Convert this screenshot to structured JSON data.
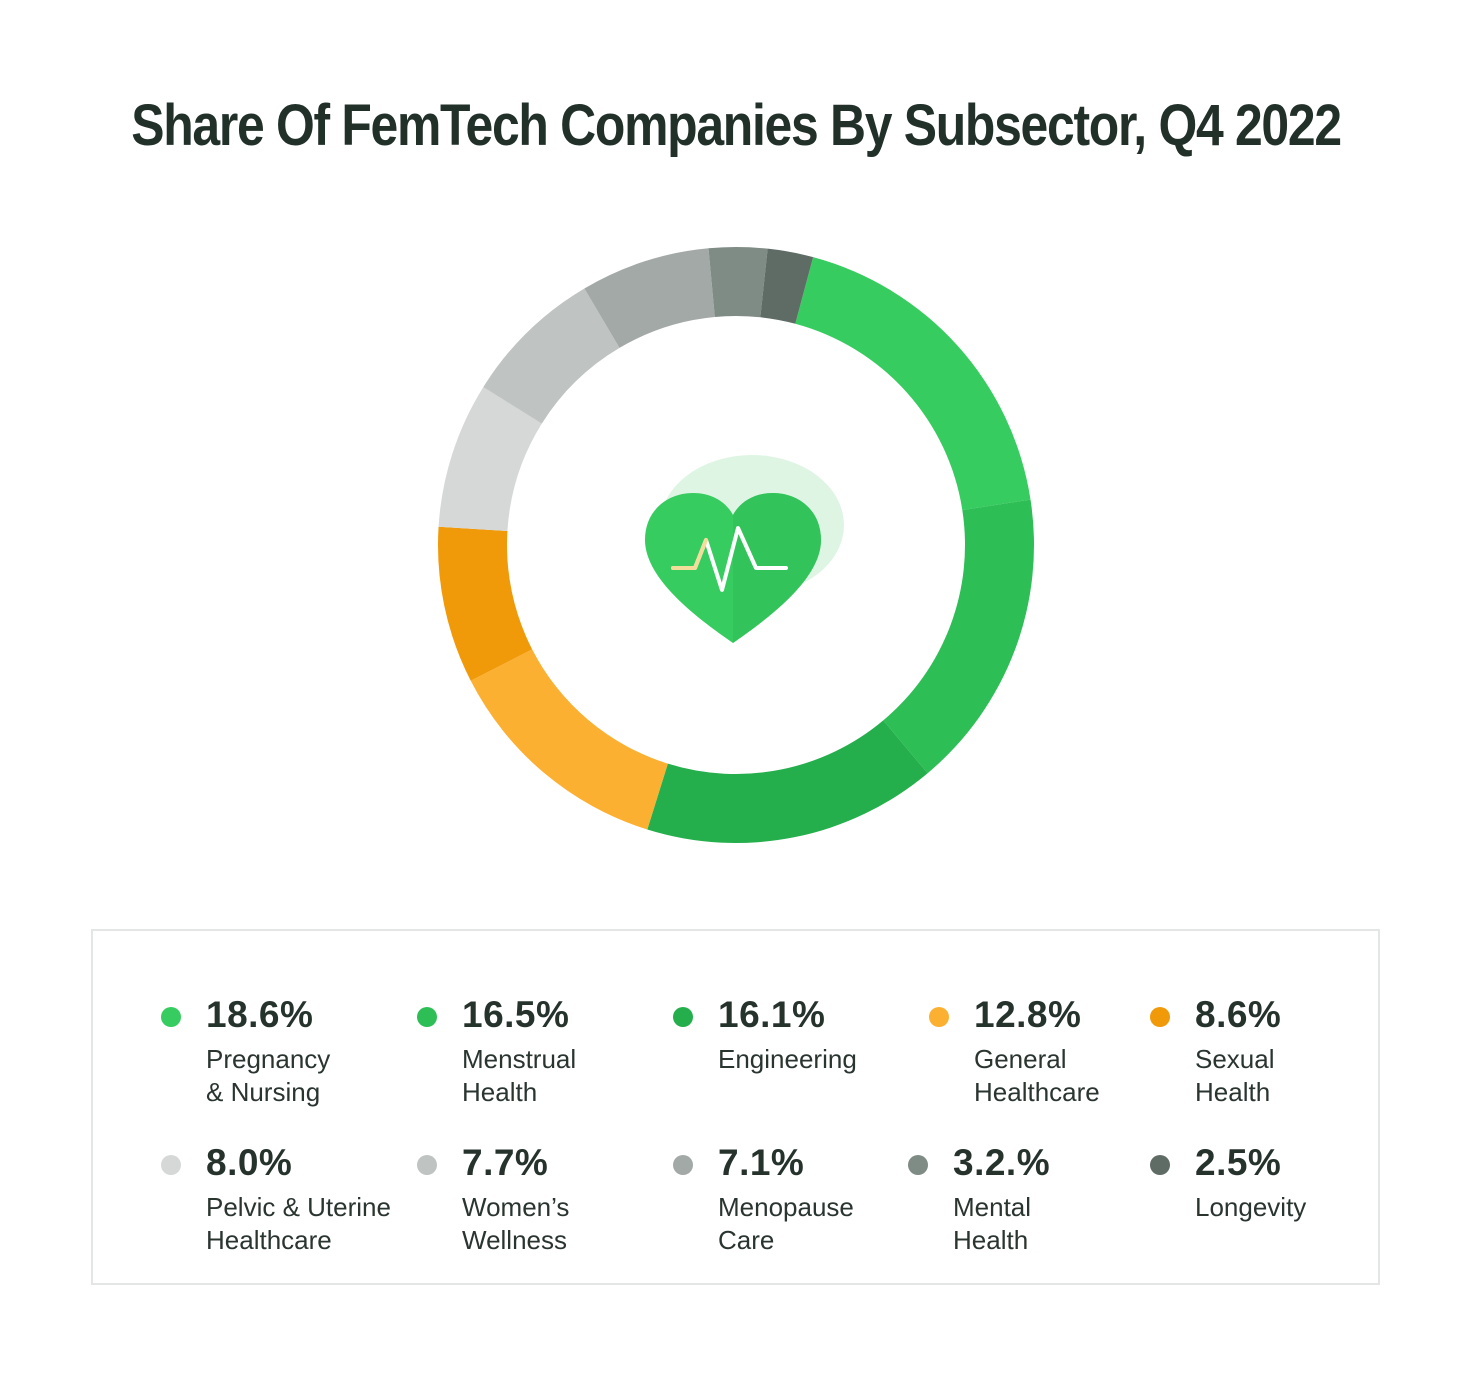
{
  "chart_data": {
    "type": "pie",
    "title": "Share Of FemTech Companies By Subsector, Q4 2022",
    "style": "donut",
    "center_icon": "heart-pulse-icon",
    "segments": [
      {
        "label": "Pregnancy & Nursing",
        "value": 18.6,
        "display": "18.6%",
        "color": "#37cc5f",
        "label_lines": [
          "Pregnancy",
          "& Nursing"
        ]
      },
      {
        "label": "Menstrual Health",
        "value": 16.5,
        "display": "16.5%",
        "color": "#2ebe56",
        "label_lines": [
          "Menstrual",
          "Health"
        ]
      },
      {
        "label": "Engineering",
        "value": 16.1,
        "display": "16.1%",
        "color": "#25af4c",
        "label_lines": [
          "Engineering"
        ]
      },
      {
        "label": "General Healthcare",
        "value": 12.8,
        "display": "12.8%",
        "color": "#fbb032",
        "label_lines": [
          "General",
          "Healthcare"
        ]
      },
      {
        "label": "Sexual Health",
        "value": 8.6,
        "display": "8.6%",
        "color": "#f09a0a",
        "label_lines": [
          "Sexual",
          "Health"
        ]
      },
      {
        "label": "Pelvic & Uterine Healthcare",
        "value": 8.0,
        "display": "8.0%",
        "color": "#d6d8d7",
        "label_lines": [
          "Pelvic & Uterine",
          "Healthcare"
        ]
      },
      {
        "label": "Women's Wellness",
        "value": 7.7,
        "display": "7.7%",
        "color": "#bfc3c1",
        "label_lines": [
          "Women’s",
          "Wellness"
        ]
      },
      {
        "label": "Menopause Care",
        "value": 7.1,
        "display": "7.1%",
        "color": "#a3a9a6",
        "label_lines": [
          "Menopause",
          "Care"
        ]
      },
      {
        "label": "Mental Health",
        "value": 3.2,
        "display": "3.2.%",
        "color": "#7f8b85",
        "label_lines": [
          "Mental",
          "Health"
        ]
      },
      {
        "label": "Longevity",
        "value": 2.5,
        "display": "2.5%",
        "color": "#5f6c65",
        "label_lines": [
          "Longevity"
        ]
      }
    ]
  }
}
